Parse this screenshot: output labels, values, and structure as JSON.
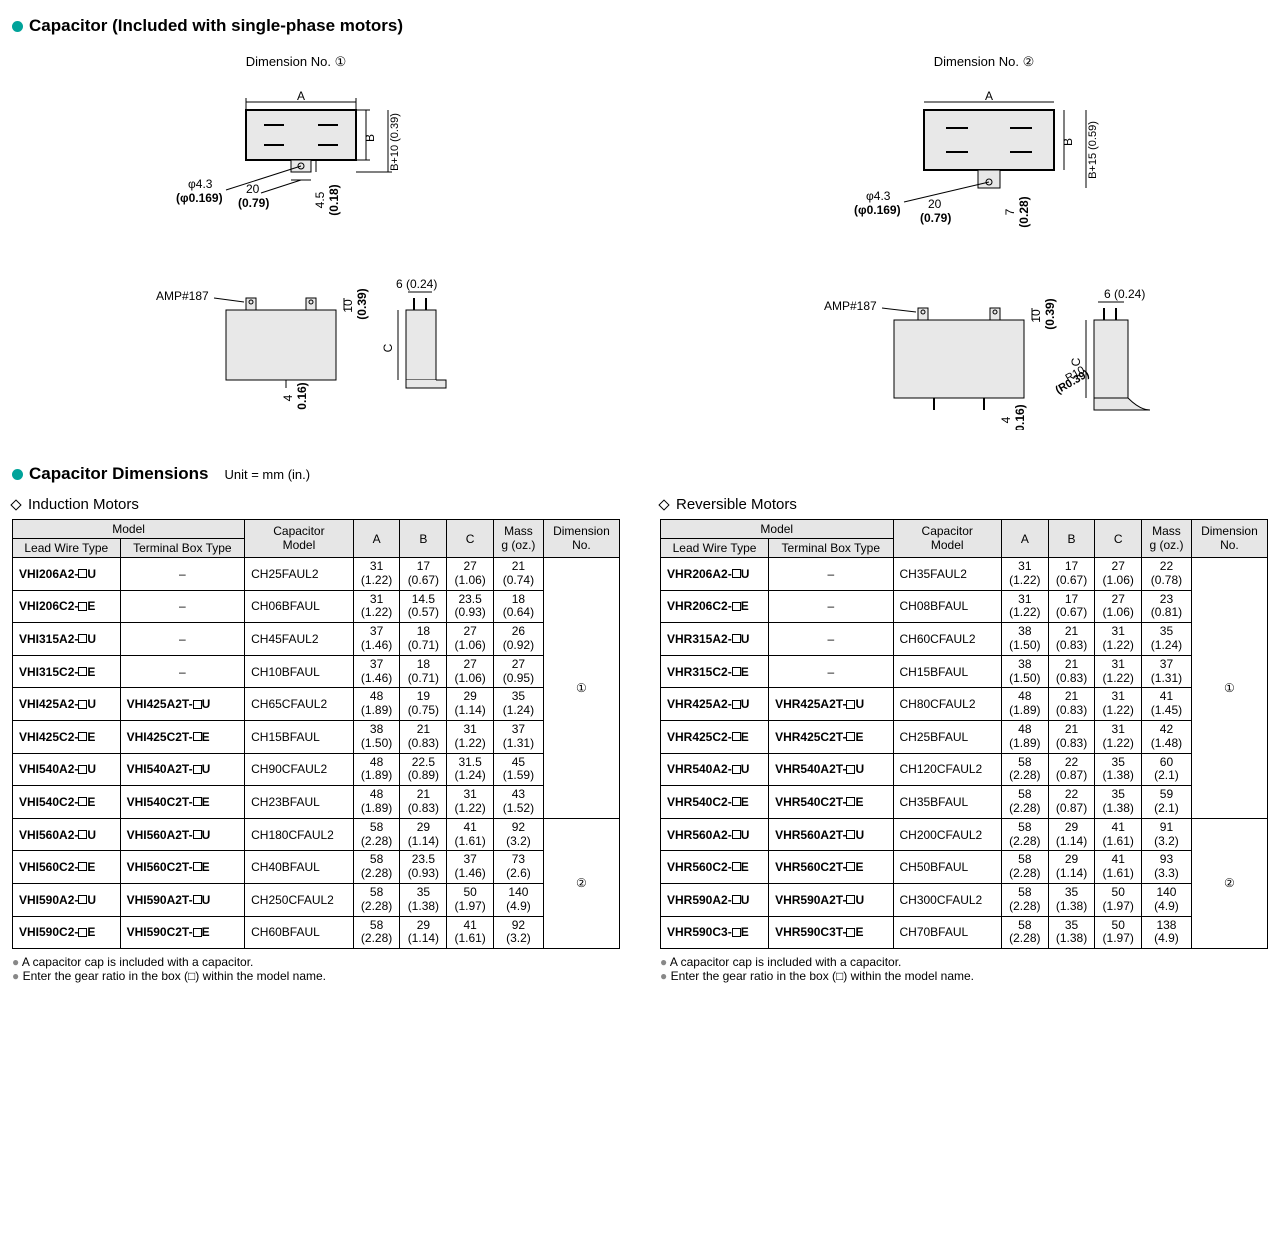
{
  "title1": "Capacitor (Included with single-phase motors)",
  "title2": "Capacitor Dimensions",
  "unit_note": "Unit = mm (in.)",
  "dim_label_1": "Dimension No.",
  "dim_no_1": "①",
  "dim_label_2": "Dimension No.",
  "dim_no_2": "②",
  "diag": {
    "A": "A",
    "B": "B",
    "C": "C",
    "amp": "AMP#187",
    "phi": "φ4.3",
    "phi_in": "(φ0.169)",
    "d20": "20",
    "d20_in": "(0.79)",
    "d45": "4.5",
    "d45_in": "(0.18)",
    "d7": "7",
    "d7_in": "(0.28)",
    "bplus10": "B+10 (0.39)",
    "bplus15": "B+15 (0.59)",
    "d10": "10",
    "d10_in": "(0.39)",
    "d6": "6 (0.24)",
    "d4": "4",
    "d4_in": "(0.16)",
    "r10": "R10",
    "r10_in": "(R0.39)"
  },
  "sub1": "Induction Motors",
  "sub2": "Reversible Motors",
  "headers": {
    "model": "Model",
    "lead": "Lead Wire Type",
    "term": "Terminal Box Type",
    "cap": "Capacitor\nModel",
    "A": "A",
    "B": "B",
    "C": "C",
    "mass": "Mass\ng (oz.)",
    "dim": "Dimension\nNo."
  },
  "footnote1": "A capacitor cap is included with a capacitor.",
  "footnote2": "Enter the gear ratio in the box (□) within the model name.",
  "induction_rows": [
    {
      "lead": "VHI206A2-□U",
      "term": "–",
      "cap": "CH25FAUL2",
      "A": "31",
      "Ai": "(1.22)",
      "B": "17",
      "Bi": "(0.67)",
      "C": "27",
      "Ci": "(1.06)",
      "M": "21",
      "Mi": "(0.74)"
    },
    {
      "lead": "VHI206C2-□E",
      "term": "–",
      "cap": "CH06BFAUL",
      "A": "31",
      "Ai": "(1.22)",
      "B": "14.5",
      "Bi": "(0.57)",
      "C": "23.5",
      "Ci": "(0.93)",
      "M": "18",
      "Mi": "(0.64)"
    },
    {
      "lead": "VHI315A2-□U",
      "term": "–",
      "cap": "CH45FAUL2",
      "A": "37",
      "Ai": "(1.46)",
      "B": "18",
      "Bi": "(0.71)",
      "C": "27",
      "Ci": "(1.06)",
      "M": "26",
      "Mi": "(0.92)"
    },
    {
      "lead": "VHI315C2-□E",
      "term": "–",
      "cap": "CH10BFAUL",
      "A": "37",
      "Ai": "(1.46)",
      "B": "18",
      "Bi": "(0.71)",
      "C": "27",
      "Ci": "(1.06)",
      "M": "27",
      "Mi": "(0.95)"
    },
    {
      "lead": "VHI425A2-□U",
      "term": "VHI425A2T-□U",
      "cap": "CH65CFAUL2",
      "A": "48",
      "Ai": "(1.89)",
      "B": "19",
      "Bi": "(0.75)",
      "C": "29",
      "Ci": "(1.14)",
      "M": "35",
      "Mi": "(1.24)"
    },
    {
      "lead": "VHI425C2-□E",
      "term": "VHI425C2T-□E",
      "cap": "CH15BFAUL",
      "A": "38",
      "Ai": "(1.50)",
      "B": "21",
      "Bi": "(0.83)",
      "C": "31",
      "Ci": "(1.22)",
      "M": "37",
      "Mi": "(1.31)"
    },
    {
      "lead": "VHI540A2-□U",
      "term": "VHI540A2T-□U",
      "cap": "CH90CFAUL2",
      "A": "48",
      "Ai": "(1.89)",
      "B": "22.5",
      "Bi": "(0.89)",
      "C": "31.5",
      "Ci": "(1.24)",
      "M": "45",
      "Mi": "(1.59)"
    },
    {
      "lead": "VHI540C2-□E",
      "term": "VHI540C2T-□E",
      "cap": "CH23BFAUL",
      "A": "48",
      "Ai": "(1.89)",
      "B": "21",
      "Bi": "(0.83)",
      "C": "31",
      "Ci": "(1.22)",
      "M": "43",
      "Mi": "(1.52)"
    },
    {
      "lead": "VHI560A2-□U",
      "term": "VHI560A2T-□U",
      "cap": "CH180CFAUL2",
      "A": "58",
      "Ai": "(2.28)",
      "B": "29",
      "Bi": "(1.14)",
      "C": "41",
      "Ci": "(1.61)",
      "M": "92",
      "Mi": "(3.2)"
    },
    {
      "lead": "VHI560C2-□E",
      "term": "VHI560C2T-□E",
      "cap": "CH40BFAUL",
      "A": "58",
      "Ai": "(2.28)",
      "B": "23.5",
      "Bi": "(0.93)",
      "C": "37",
      "Ci": "(1.46)",
      "M": "73",
      "Mi": "(2.6)"
    },
    {
      "lead": "VHI590A2-□U",
      "term": "VHI590A2T-□U",
      "cap": "CH250CFAUL2",
      "A": "58",
      "Ai": "(2.28)",
      "B": "35",
      "Bi": "(1.38)",
      "C": "50",
      "Ci": "(1.97)",
      "M": "140",
      "Mi": "(4.9)"
    },
    {
      "lead": "VHI590C2-□E",
      "term": "VHI590C2T-□E",
      "cap": "CH60BFAUL",
      "A": "58",
      "Ai": "(2.28)",
      "B": "29",
      "Bi": "(1.14)",
      "C": "41",
      "Ci": "(1.61)",
      "M": "92",
      "Mi": "(3.2)"
    }
  ],
  "induction_dim_groups": [
    {
      "span": 8,
      "no": "①"
    },
    {
      "span": 4,
      "no": "②"
    }
  ],
  "reversible_rows": [
    {
      "lead": "VHR206A2-□U",
      "term": "–",
      "cap": "CH35FAUL2",
      "A": "31",
      "Ai": "(1.22)",
      "B": "17",
      "Bi": "(0.67)",
      "C": "27",
      "Ci": "(1.06)",
      "M": "22",
      "Mi": "(0.78)"
    },
    {
      "lead": "VHR206C2-□E",
      "term": "–",
      "cap": "CH08BFAUL",
      "A": "31",
      "Ai": "(1.22)",
      "B": "17",
      "Bi": "(0.67)",
      "C": "27",
      "Ci": "(1.06)",
      "M": "23",
      "Mi": "(0.81)"
    },
    {
      "lead": "VHR315A2-□U",
      "term": "–",
      "cap": "CH60CFAUL2",
      "A": "38",
      "Ai": "(1.50)",
      "B": "21",
      "Bi": "(0.83)",
      "C": "31",
      "Ci": "(1.22)",
      "M": "35",
      "Mi": "(1.24)"
    },
    {
      "lead": "VHR315C2-□E",
      "term": "–",
      "cap": "CH15BFAUL",
      "A": "38",
      "Ai": "(1.50)",
      "B": "21",
      "Bi": "(0.83)",
      "C": "31",
      "Ci": "(1.22)",
      "M": "37",
      "Mi": "(1.31)"
    },
    {
      "lead": "VHR425A2-□U",
      "term": "VHR425A2T-□U",
      "cap": "CH80CFAUL2",
      "A": "48",
      "Ai": "(1.89)",
      "B": "21",
      "Bi": "(0.83)",
      "C": "31",
      "Ci": "(1.22)",
      "M": "41",
      "Mi": "(1.45)"
    },
    {
      "lead": "VHR425C2-□E",
      "term": "VHR425C2T-□E",
      "cap": "CH25BFAUL",
      "A": "48",
      "Ai": "(1.89)",
      "B": "21",
      "Bi": "(0.83)",
      "C": "31",
      "Ci": "(1.22)",
      "M": "42",
      "Mi": "(1.48)"
    },
    {
      "lead": "VHR540A2-□U",
      "term": "VHR540A2T-□U",
      "cap": "CH120CFAUL2",
      "A": "58",
      "Ai": "(2.28)",
      "B": "22",
      "Bi": "(0.87)",
      "C": "35",
      "Ci": "(1.38)",
      "M": "60",
      "Mi": "(2.1)"
    },
    {
      "lead": "VHR540C2-□E",
      "term": "VHR540C2T-□E",
      "cap": "CH35BFAUL",
      "A": "58",
      "Ai": "(2.28)",
      "B": "22",
      "Bi": "(0.87)",
      "C": "35",
      "Ci": "(1.38)",
      "M": "59",
      "Mi": "(2.1)"
    },
    {
      "lead": "VHR560A2-□U",
      "term": "VHR560A2T-□U",
      "cap": "CH200CFAUL2",
      "A": "58",
      "Ai": "(2.28)",
      "B": "29",
      "Bi": "(1.14)",
      "C": "41",
      "Ci": "(1.61)",
      "M": "91",
      "Mi": "(3.2)"
    },
    {
      "lead": "VHR560C2-□E",
      "term": "VHR560C2T-□E",
      "cap": "CH50BFAUL",
      "A": "58",
      "Ai": "(2.28)",
      "B": "29",
      "Bi": "(1.14)",
      "C": "41",
      "Ci": "(1.61)",
      "M": "93",
      "Mi": "(3.3)"
    },
    {
      "lead": "VHR590A2-□U",
      "term": "VHR590A2T-□U",
      "cap": "CH300CFAUL2",
      "A": "58",
      "Ai": "(2.28)",
      "B": "35",
      "Bi": "(1.38)",
      "C": "50",
      "Ci": "(1.97)",
      "M": "140",
      "Mi": "(4.9)"
    },
    {
      "lead": "VHR590C3-□E",
      "term": "VHR590C3T-□E",
      "cap": "CH70BFAUL",
      "A": "58",
      "Ai": "(2.28)",
      "B": "35",
      "Bi": "(1.38)",
      "C": "50",
      "Ci": "(1.97)",
      "M": "138",
      "Mi": "(4.9)"
    }
  ],
  "reversible_dim_groups": [
    {
      "span": 8,
      "no": "①"
    },
    {
      "span": 4,
      "no": "②"
    }
  ]
}
